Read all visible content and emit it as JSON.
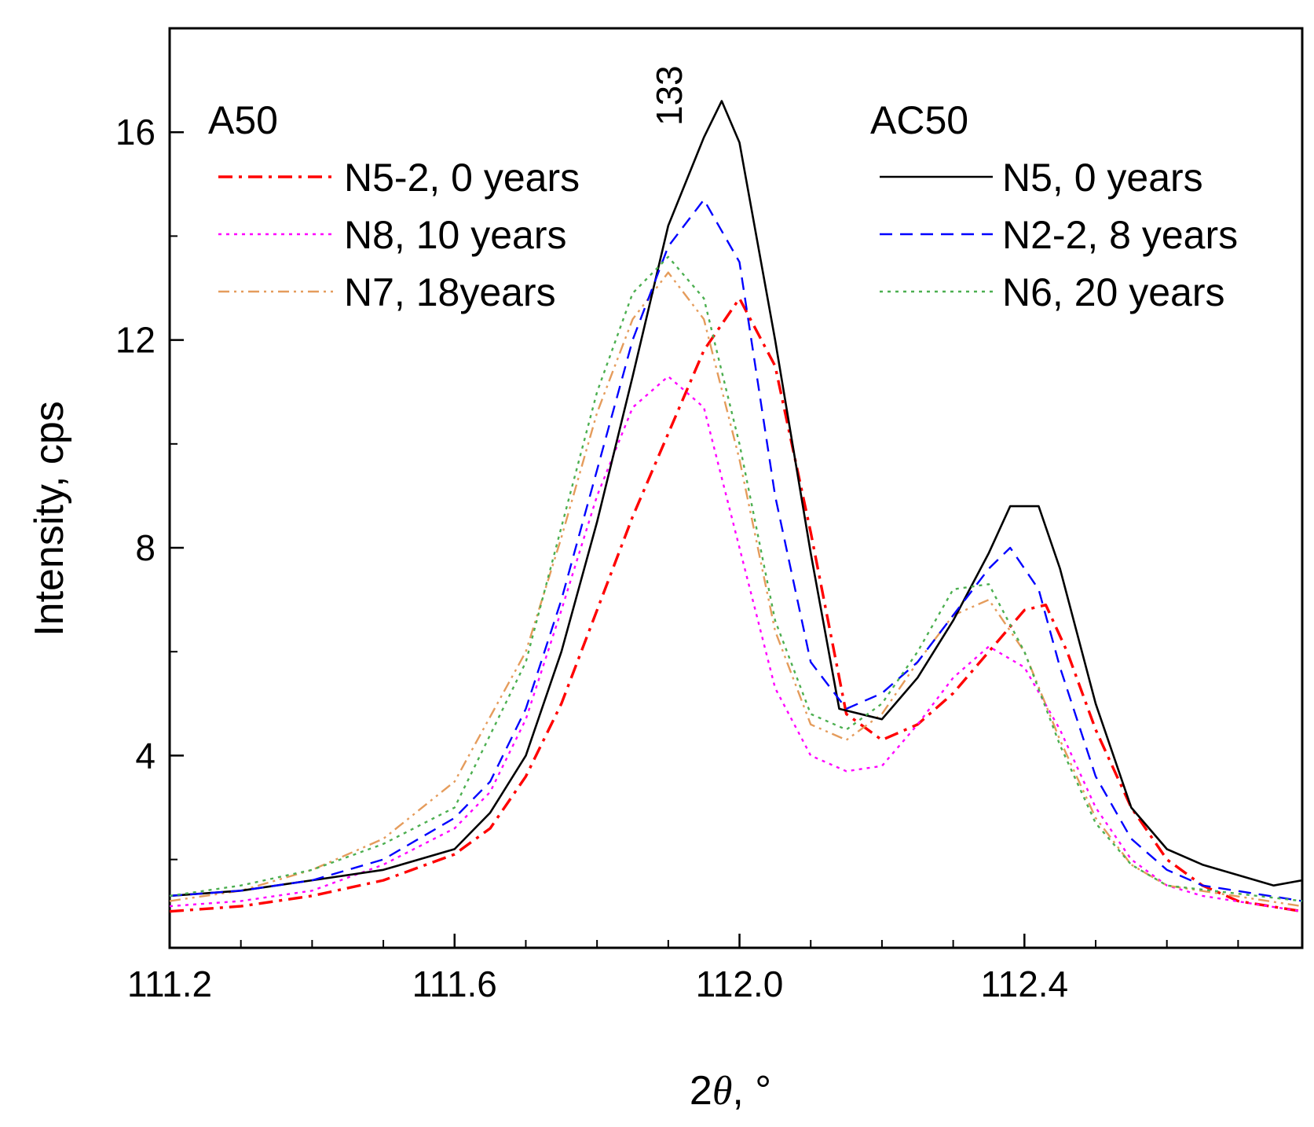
{
  "chart_data": {
    "type": "line",
    "xlabel_prefix": "2",
    "xlabel_symbol": "θ",
    "xlabel_suffix": ", °",
    "ylabel": "Intensity, cps",
    "xlim": [
      111.2,
      112.79
    ],
    "ylim": [
      0.3,
      18.0
    ],
    "x_ticks": [
      {
        "value": 111.2,
        "label": "111.2"
      },
      {
        "value": 111.6,
        "label": "111.6"
      },
      {
        "value": 112.0,
        "label": "112.0"
      },
      {
        "value": 112.4,
        "label": "112.4"
      }
    ],
    "x_minor_step": 0.1,
    "y_ticks": [
      {
        "value": 4,
        "label": "4"
      },
      {
        "value": 8,
        "label": "8"
      },
      {
        "value": 12,
        "label": "12"
      },
      {
        "value": 16,
        "label": "16"
      }
    ],
    "y_minor_step": 2,
    "annotation": {
      "text": "133",
      "x": 111.95,
      "y": 17.3
    },
    "legend_groups": [
      {
        "title": "A50",
        "entries": [
          "N5-2, 0 years",
          "N8, 10 years",
          "N7, 18years"
        ]
      },
      {
        "title": "AC50",
        "entries": [
          "N5, 0 years",
          "N2-2, 8 years",
          "N6, 20 years"
        ]
      }
    ],
    "series": [
      {
        "name": "N5-2, 0 years",
        "group": "A50",
        "color": "#ff0000",
        "dash": "dashdot",
        "x": [
          111.2,
          111.3,
          111.4,
          111.5,
          111.6,
          111.65,
          111.7,
          111.75,
          111.8,
          111.85,
          111.9,
          111.95,
          112.0,
          112.05,
          112.1,
          112.15,
          112.2,
          112.25,
          112.3,
          112.35,
          112.4,
          112.43,
          112.46,
          112.5,
          112.55,
          112.6,
          112.65,
          112.7,
          112.79
        ],
        "y": [
          1.0,
          1.1,
          1.3,
          1.6,
          2.1,
          2.6,
          3.6,
          5.0,
          6.8,
          8.6,
          10.2,
          11.8,
          12.8,
          11.5,
          8.3,
          4.8,
          4.3,
          4.6,
          5.2,
          6.0,
          6.8,
          6.9,
          6.0,
          4.5,
          3.0,
          2.0,
          1.5,
          1.2,
          1.0
        ]
      },
      {
        "name": "N8, 10 years",
        "group": "A50",
        "color": "#ff00ff",
        "dash": "dot",
        "x": [
          111.2,
          111.3,
          111.4,
          111.5,
          111.6,
          111.65,
          111.7,
          111.75,
          111.8,
          111.85,
          111.9,
          111.95,
          112.0,
          112.05,
          112.1,
          112.15,
          112.2,
          112.25,
          112.3,
          112.35,
          112.4,
          112.45,
          112.5,
          112.55,
          112.6,
          112.65,
          112.79
        ],
        "y": [
          1.1,
          1.2,
          1.4,
          1.9,
          2.6,
          3.3,
          4.7,
          6.8,
          9.0,
          10.7,
          11.3,
          10.7,
          8.0,
          5.3,
          4.0,
          3.7,
          3.8,
          4.6,
          5.5,
          6.1,
          5.7,
          4.5,
          3.0,
          2.0,
          1.5,
          1.3,
          1.0
        ]
      },
      {
        "name": "N7, 18years",
        "group": "A50",
        "color": "#e59c5c",
        "dash": "dashdotdot",
        "x": [
          111.2,
          111.3,
          111.4,
          111.5,
          111.6,
          111.7,
          111.75,
          111.8,
          111.85,
          111.9,
          111.95,
          112.0,
          112.05,
          112.1,
          112.15,
          112.2,
          112.25,
          112.3,
          112.35,
          112.4,
          112.45,
          112.5,
          112.55,
          112.6,
          112.79
        ],
        "y": [
          1.2,
          1.4,
          1.8,
          2.4,
          3.5,
          6.0,
          8.2,
          10.6,
          12.4,
          13.3,
          12.4,
          9.7,
          6.4,
          4.6,
          4.3,
          4.8,
          5.8,
          6.7,
          7.0,
          6.0,
          4.3,
          2.8,
          1.9,
          1.5,
          1.1
        ]
      },
      {
        "name": "N5, 0 years",
        "group": "AC50",
        "color": "#000000",
        "dash": "solid",
        "x": [
          111.2,
          111.3,
          111.4,
          111.5,
          111.6,
          111.65,
          111.7,
          111.75,
          111.8,
          111.85,
          111.9,
          111.95,
          111.975,
          112.0,
          112.05,
          112.1,
          112.14,
          112.2,
          112.25,
          112.3,
          112.35,
          112.38,
          112.42,
          112.45,
          112.5,
          112.55,
          112.6,
          112.65,
          112.7,
          112.75,
          112.79
        ],
        "y": [
          1.3,
          1.4,
          1.6,
          1.8,
          2.2,
          2.9,
          4.0,
          6.0,
          8.5,
          11.3,
          14.2,
          15.9,
          16.6,
          15.8,
          12.0,
          7.9,
          4.9,
          4.7,
          5.5,
          6.6,
          7.9,
          8.8,
          8.8,
          7.6,
          5.0,
          3.0,
          2.2,
          1.9,
          1.7,
          1.5,
          1.6
        ]
      },
      {
        "name": "N2-2, 8 years",
        "group": "AC50",
        "color": "#0000ff",
        "dash": "dash",
        "x": [
          111.2,
          111.3,
          111.4,
          111.5,
          111.6,
          111.65,
          111.7,
          111.75,
          111.8,
          111.85,
          111.9,
          111.95,
          112.0,
          112.05,
          112.1,
          112.15,
          112.2,
          112.25,
          112.3,
          112.35,
          112.38,
          112.42,
          112.45,
          112.5,
          112.55,
          112.6,
          112.65,
          112.79
        ],
        "y": [
          1.3,
          1.4,
          1.6,
          2.0,
          2.8,
          3.5,
          4.9,
          7.0,
          9.5,
          12.0,
          13.8,
          14.7,
          13.5,
          9.0,
          5.8,
          4.9,
          5.2,
          5.8,
          6.7,
          7.6,
          8.0,
          7.2,
          5.7,
          3.6,
          2.4,
          1.8,
          1.5,
          1.2
        ]
      },
      {
        "name": "N6, 20 years",
        "group": "AC50",
        "color": "#4caf50",
        "dash": "dot",
        "x": [
          111.2,
          111.3,
          111.4,
          111.5,
          111.6,
          111.7,
          111.75,
          111.8,
          111.85,
          111.9,
          111.95,
          112.0,
          112.05,
          112.1,
          112.15,
          112.2,
          112.25,
          112.3,
          112.35,
          112.4,
          112.45,
          112.5,
          112.55,
          112.6,
          112.79
        ],
        "y": [
          1.3,
          1.5,
          1.8,
          2.3,
          3.0,
          5.8,
          8.4,
          11.0,
          12.9,
          13.6,
          12.8,
          10.0,
          6.6,
          4.8,
          4.5,
          5.0,
          6.0,
          7.2,
          7.3,
          6.0,
          4.2,
          2.7,
          1.9,
          1.5,
          1.2
        ]
      }
    ]
  }
}
